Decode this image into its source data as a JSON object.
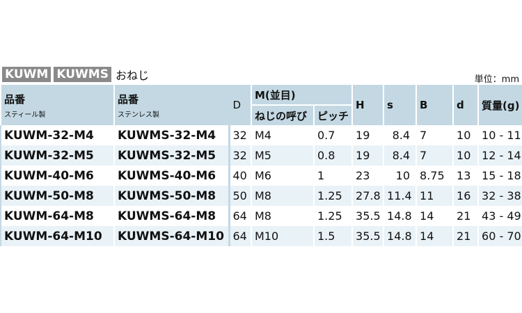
{
  "title": {
    "tag1": "KUWM",
    "tag2": "KUWMS",
    "suffix": "おねじ"
  },
  "unit": "単位：mm",
  "headers": {
    "pn_steel": "品番",
    "pn_steel_sub": "スティール製",
    "pn_sus": "品番",
    "pn_sus_sub": "ステンレス製",
    "D": "D",
    "M": "M(並目)",
    "thread": "ねじの呼び",
    "pitch": "ピッチ",
    "H": "H",
    "s": "s",
    "B": "B",
    "d": "d",
    "mass": "質量(g)"
  },
  "rows": [
    {
      "steel": "KUWM-32-M4",
      "sus": "KUWMS-32-M4",
      "D": "32",
      "thread": "M4",
      "pitch": "0.7",
      "H": "19",
      "s": "8.4",
      "B": "7",
      "d": "10",
      "mass": "10 - 11"
    },
    {
      "steel": "KUWM-32-M5",
      "sus": "KUWMS-32-M5",
      "D": "32",
      "thread": "M5",
      "pitch": "0.8",
      "H": "19",
      "s": "8.4",
      "B": "7",
      "d": "10",
      "mass": "12 - 14"
    },
    {
      "steel": "KUWM-40-M6",
      "sus": "KUWMS-40-M6",
      "D": "40",
      "thread": "M6",
      "pitch": "1",
      "H": "23",
      "s": "10",
      "B": "8.75",
      "d": "13",
      "mass": "15 - 18"
    },
    {
      "steel": "KUWM-50-M8",
      "sus": "KUWMS-50-M8",
      "D": "50",
      "thread": "M8",
      "pitch": "1.25",
      "H": "27.8",
      "s": "11.4",
      "B": "11",
      "d": "16",
      "mass": "32 - 38"
    },
    {
      "steel": "KUWM-64-M8",
      "sus": "KUWMS-64-M8",
      "D": "64",
      "thread": "M8",
      "pitch": "1.25",
      "H": "35.5",
      "s": "14.8",
      "B": "14",
      "d": "21",
      "mass": "43 - 49"
    },
    {
      "steel": "KUWM-64-M10",
      "sus": "KUWMS-64-M10",
      "D": "64",
      "thread": "M10",
      "pitch": "1.5",
      "H": "35.5",
      "s": "14.8",
      "B": "14",
      "d": "21",
      "mass": "60 - 70"
    }
  ]
}
